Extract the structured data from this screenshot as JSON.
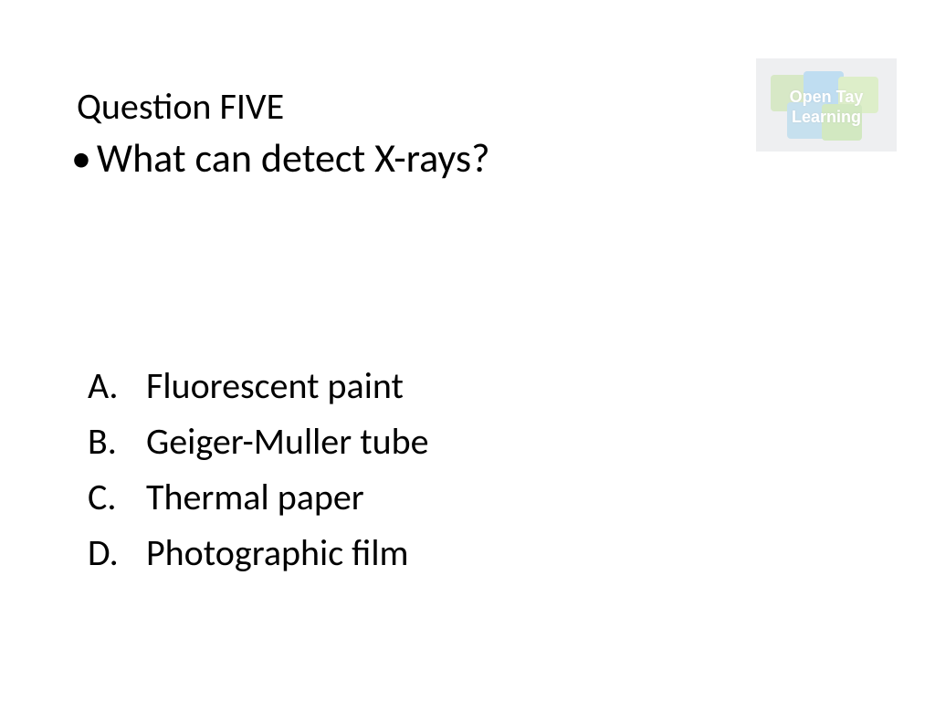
{
  "slide": {
    "title": "Question FIVE",
    "bullet_char": "•",
    "question": "What can detect X-rays?",
    "answers": [
      {
        "letter": "A.",
        "text": "Fluorescent paint"
      },
      {
        "letter": "B.",
        "text": "Geiger-Muller tube"
      },
      {
        "letter": "C.",
        "text": "Thermal paper"
      },
      {
        "letter": "D.",
        "text": "Photographic film"
      }
    ]
  },
  "logo": {
    "line1": "Open Tay",
    "line2": "Learning",
    "bg_color": "#cfd4d8",
    "piece_colors": [
      "#8fbf5f",
      "#4a9fd8",
      "#9fd068",
      "#5fa8d0",
      "#7fbf50"
    ],
    "opacity": 0.35
  },
  "styling": {
    "background_color": "#ffffff",
    "title_fontsize": 40,
    "question_fontsize": 44,
    "answer_fontsize": 40,
    "text_color": "#000000",
    "font_family": "Calibri"
  }
}
